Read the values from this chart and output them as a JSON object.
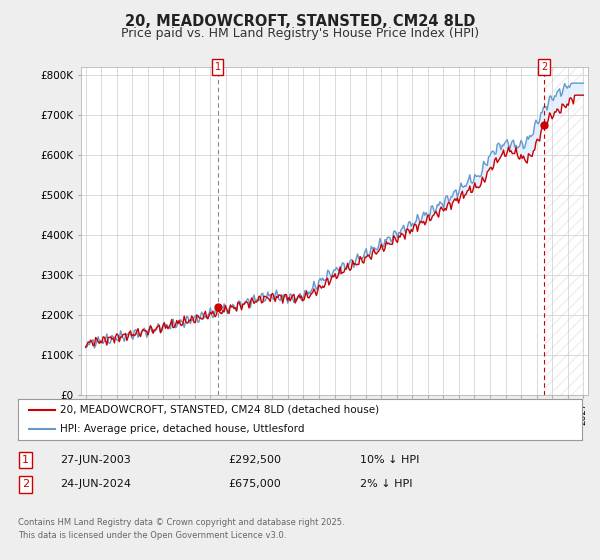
{
  "title": "20, MEADOWCROFT, STANSTED, CM24 8LD",
  "subtitle": "Price paid vs. HM Land Registry's House Price Index (HPI)",
  "ylabel_ticks": [
    "£0",
    "£100K",
    "£200K",
    "£300K",
    "£400K",
    "£500K",
    "£600K",
    "£700K",
    "£800K"
  ],
  "ytick_values": [
    0,
    100000,
    200000,
    300000,
    400000,
    500000,
    600000,
    700000,
    800000
  ],
  "ylim": [
    0,
    820000
  ],
  "xlim_start": 1994.7,
  "xlim_end": 2027.3,
  "hpi_color": "#6699cc",
  "hpi_fill_color": "#ddeeff",
  "price_color": "#cc0000",
  "marker1_year": 2003.49,
  "marker2_year": 2024.49,
  "legend_line1": "20, MEADOWCROFT, STANSTED, CM24 8LD (detached house)",
  "legend_line2": "HPI: Average price, detached house, Uttlesford",
  "table_row1": [
    "1",
    "27-JUN-2003",
    "£292,500",
    "10% ↓ HPI"
  ],
  "table_row2": [
    "2",
    "24-JUN-2024",
    "£675,000",
    "2% ↓ HPI"
  ],
  "footnote": "Contains HM Land Registry data © Crown copyright and database right 2025.\nThis data is licensed under the Open Government Licence v3.0.",
  "bg_color": "#eeeeee",
  "plot_bg_color": "#ffffff",
  "grid_color": "#cccccc",
  "title_fontsize": 10.5,
  "subtitle_fontsize": 9
}
